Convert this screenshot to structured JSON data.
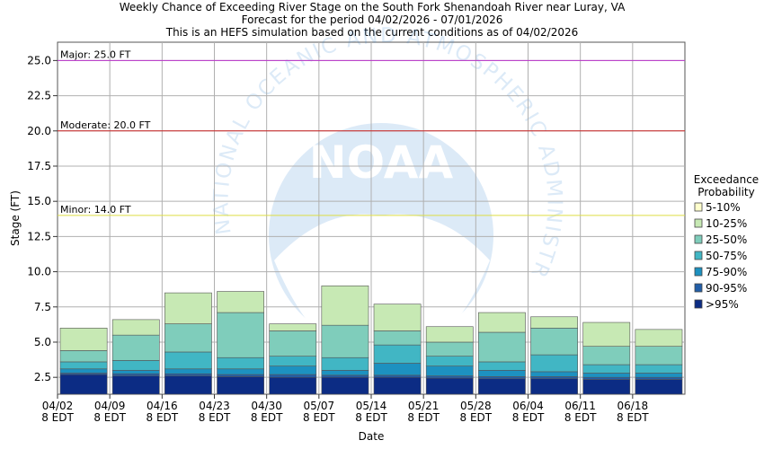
{
  "title_lines": [
    "Weekly Chance of Exceeding River Stage on the South Fork Shenandoah River near Luray, VA",
    "Forecast for the period 04/02/2026 - 07/01/2026",
    "This is an HEFS simulation based on the current conditions as of 04/02/2026"
  ],
  "watermark": {
    "logo_text": "NOAA",
    "ring_text": "NATIONAL OCEANIC AND ATMOSPHERIC ADMINISTRATION"
  },
  "colors": {
    "major": "#bb33cc",
    "moderate": "#cc2222",
    "minor": "#dddd44",
    "grid": "#b0b0b0"
  },
  "chart_data": {
    "type": "bar",
    "stacked": true,
    "ylabel": "Stage (FT)",
    "xlabel": "Date",
    "ylim": [
      1.3,
      26.3
    ],
    "yticks": [
      2.5,
      5.0,
      7.5,
      10.0,
      12.5,
      15.0,
      17.5,
      20.0,
      22.5,
      25.0
    ],
    "ytick_labels": [
      "2.5",
      "5.0",
      "7.5",
      "10.0",
      "12.5",
      "15.0",
      "17.5",
      "20.0",
      "22.5",
      "25.0"
    ],
    "x_ticks": [
      {
        "date": "04/02",
        "tz": "8 EDT"
      },
      {
        "date": "04/09",
        "tz": "8 EDT"
      },
      {
        "date": "04/16",
        "tz": "8 EDT"
      },
      {
        "date": "04/23",
        "tz": "8 EDT"
      },
      {
        "date": "04/30",
        "tz": "8 EDT"
      },
      {
        "date": "05/07",
        "tz": "8 EDT"
      },
      {
        "date": "05/14",
        "tz": "8 EDT"
      },
      {
        "date": "05/21",
        "tz": "8 EDT"
      },
      {
        "date": "05/28",
        "tz": "8 EDT"
      },
      {
        "date": "06/04",
        "tz": "8 EDT"
      },
      {
        "date": "06/11",
        "tz": "8 EDT"
      },
      {
        "date": "06/18",
        "tz": "8 EDT"
      }
    ],
    "thresholds": [
      {
        "label": "Major: 25.0 FT",
        "value": 25.0,
        "color_key": "major"
      },
      {
        "label": "Moderate: 20.0 FT",
        "value": 20.0,
        "color_key": "moderate"
      },
      {
        "label": "Minor: 14.0 FT",
        "value": 14.0,
        "color_key": "minor"
      }
    ],
    "legend": {
      "title_lines": [
        "Exceedance",
        "Probability"
      ],
      "position": "right",
      "items": [
        {
          "label": "5-10%",
          "color": "#ffffcc"
        },
        {
          "label": "10-25%",
          "color": "#c7e9b4"
        },
        {
          "label": "25-50%",
          "color": "#7fcdbb"
        },
        {
          "label": "50-75%",
          "color": "#41b6c4"
        },
        {
          "label": "75-90%",
          "color": "#1d91c0"
        },
        {
          "label": "90-95%",
          "color": "#225ea8"
        },
        {
          "label": ">95%",
          "color": "#0c2c84"
        }
      ]
    },
    "bars": [
      {
        "x": "04/02",
        "levels": [
          2.7,
          2.8,
          3.1,
          3.6,
          4.4,
          6.0
        ]
      },
      {
        "x": "04/09",
        "levels": [
          2.6,
          2.75,
          3.0,
          3.7,
          5.5,
          6.6
        ]
      },
      {
        "x": "04/16",
        "levels": [
          2.6,
          2.75,
          3.1,
          4.3,
          6.3,
          8.5
        ]
      },
      {
        "x": "04/23",
        "levels": [
          2.55,
          2.7,
          3.1,
          3.9,
          7.1,
          8.6
        ]
      },
      {
        "x": "04/30",
        "levels": [
          2.5,
          2.7,
          3.3,
          4.0,
          5.8,
          6.3
        ]
      },
      {
        "x": "05/07",
        "levels": [
          2.5,
          2.65,
          3.0,
          3.9,
          6.2,
          9.0
        ]
      },
      {
        "x": "05/14",
        "levels": [
          2.5,
          2.65,
          3.5,
          4.8,
          5.8,
          7.7
        ]
      },
      {
        "x": "05/21",
        "levels": [
          2.45,
          2.6,
          3.3,
          4.0,
          5.0,
          6.1
        ]
      },
      {
        "x": "05/28",
        "levels": [
          2.4,
          2.55,
          3.0,
          3.6,
          5.7,
          7.1
        ]
      },
      {
        "x": "06/04",
        "levels": [
          2.4,
          2.55,
          2.9,
          4.1,
          6.0,
          6.8
        ]
      },
      {
        "x": "06/11",
        "levels": [
          2.35,
          2.5,
          2.8,
          3.4,
          4.7,
          6.4
        ]
      },
      {
        "x": "06/18",
        "levels": [
          2.35,
          2.5,
          2.8,
          3.4,
          4.7,
          5.9
        ]
      }
    ]
  }
}
